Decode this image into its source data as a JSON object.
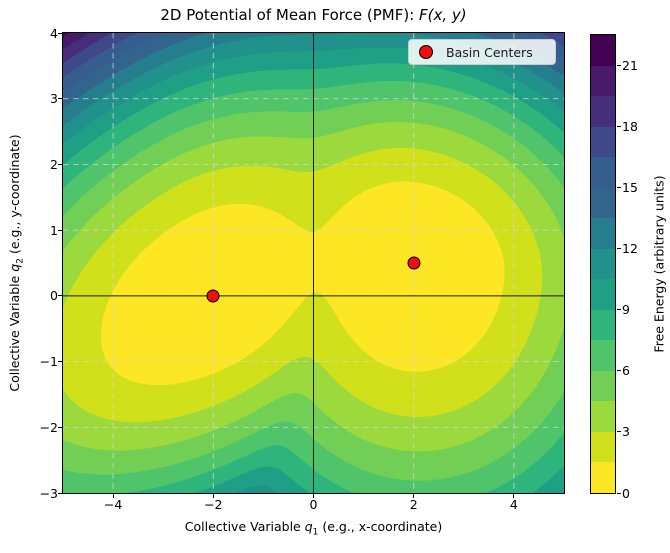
{
  "title": {
    "prefix": "2D Potential of Mean Force (PMF): ",
    "math": "F(x, y)"
  },
  "axis_labels": {
    "x": {
      "prefix": "Collective Variable ",
      "var": "q",
      "sub": "1",
      "suffix": " (e.g., x-coordinate)"
    },
    "y": {
      "prefix": "Collective Variable ",
      "var": "q",
      "sub": "2",
      "suffix": " (e.g., y-coordinate)"
    }
  },
  "chart_data": {
    "type": "heatmap",
    "subtype": "filled-contour",
    "x_range": [
      -5,
      5
    ],
    "y_range": [
      -3,
      4
    ],
    "x_ticks": [
      -4,
      -2,
      0,
      2,
      4
    ],
    "x_tick_labels": [
      "−4",
      "−2",
      "0",
      "2",
      "4"
    ],
    "y_ticks": [
      -3,
      -2,
      -1,
      0,
      1,
      2,
      3,
      4
    ],
    "y_tick_labels": [
      "−3",
      "−2",
      "−1",
      "0",
      "1",
      "2",
      "3",
      "4"
    ],
    "grid": {
      "on": true,
      "style": "dashed",
      "color": "rgba(216,216,216,0.85)"
    },
    "reference_lines": {
      "horizontal_y": 0,
      "vertical_x": 0,
      "color": "#1a1a1a"
    },
    "levels": {
      "min": 0,
      "max": 22.5,
      "step": 1.5,
      "n_bands": 15
    },
    "colormap_name": "viridis_reversed",
    "band_colors_low_to_high": [
      "#fde725",
      "#d0e11c",
      "#9bd93c",
      "#72cf56",
      "#50c46a",
      "#2fb47c",
      "#209f87",
      "#21918c",
      "#257e8e",
      "#32648d",
      "#355d8d",
      "#3f4888",
      "#462e7c",
      "#471a6c",
      "#440154"
    ],
    "surface_model": {
      "description": "free energy = softmin of two tilted anisotropic quadratic wells",
      "temperature": 0.8,
      "wells": [
        {
          "cx": -2,
          "cy": 0,
          "ex": 0.928,
          "ey": 0.371,
          "a_pos": 0.4,
          "a_neg": 0.27,
          "b_pos": 0.9,
          "b_neg": 1.2
        },
        {
          "cx": 2,
          "cy": 0.5,
          "ex": 0.989,
          "ey": -0.148,
          "a_pos": 0.45,
          "a_neg": 0.5,
          "b_pos": 1.0,
          "b_neg": 0.55
        }
      ]
    },
    "basin_centers": [
      {
        "x": -2,
        "y": 0
      },
      {
        "x": 2,
        "y": 0.5
      }
    ],
    "marker": {
      "fill": "#ee100c",
      "edge": "#000000"
    },
    "legend": {
      "label": "Basin Centers",
      "position": "upper right"
    },
    "colorbar": {
      "label": "Free Energy (arbitrary units)",
      "ticks": [
        0,
        3,
        6,
        9,
        12,
        15,
        18,
        21
      ],
      "tick_labels": [
        "0",
        "3",
        "6",
        "9",
        "12",
        "15",
        "18",
        "21"
      ]
    }
  }
}
